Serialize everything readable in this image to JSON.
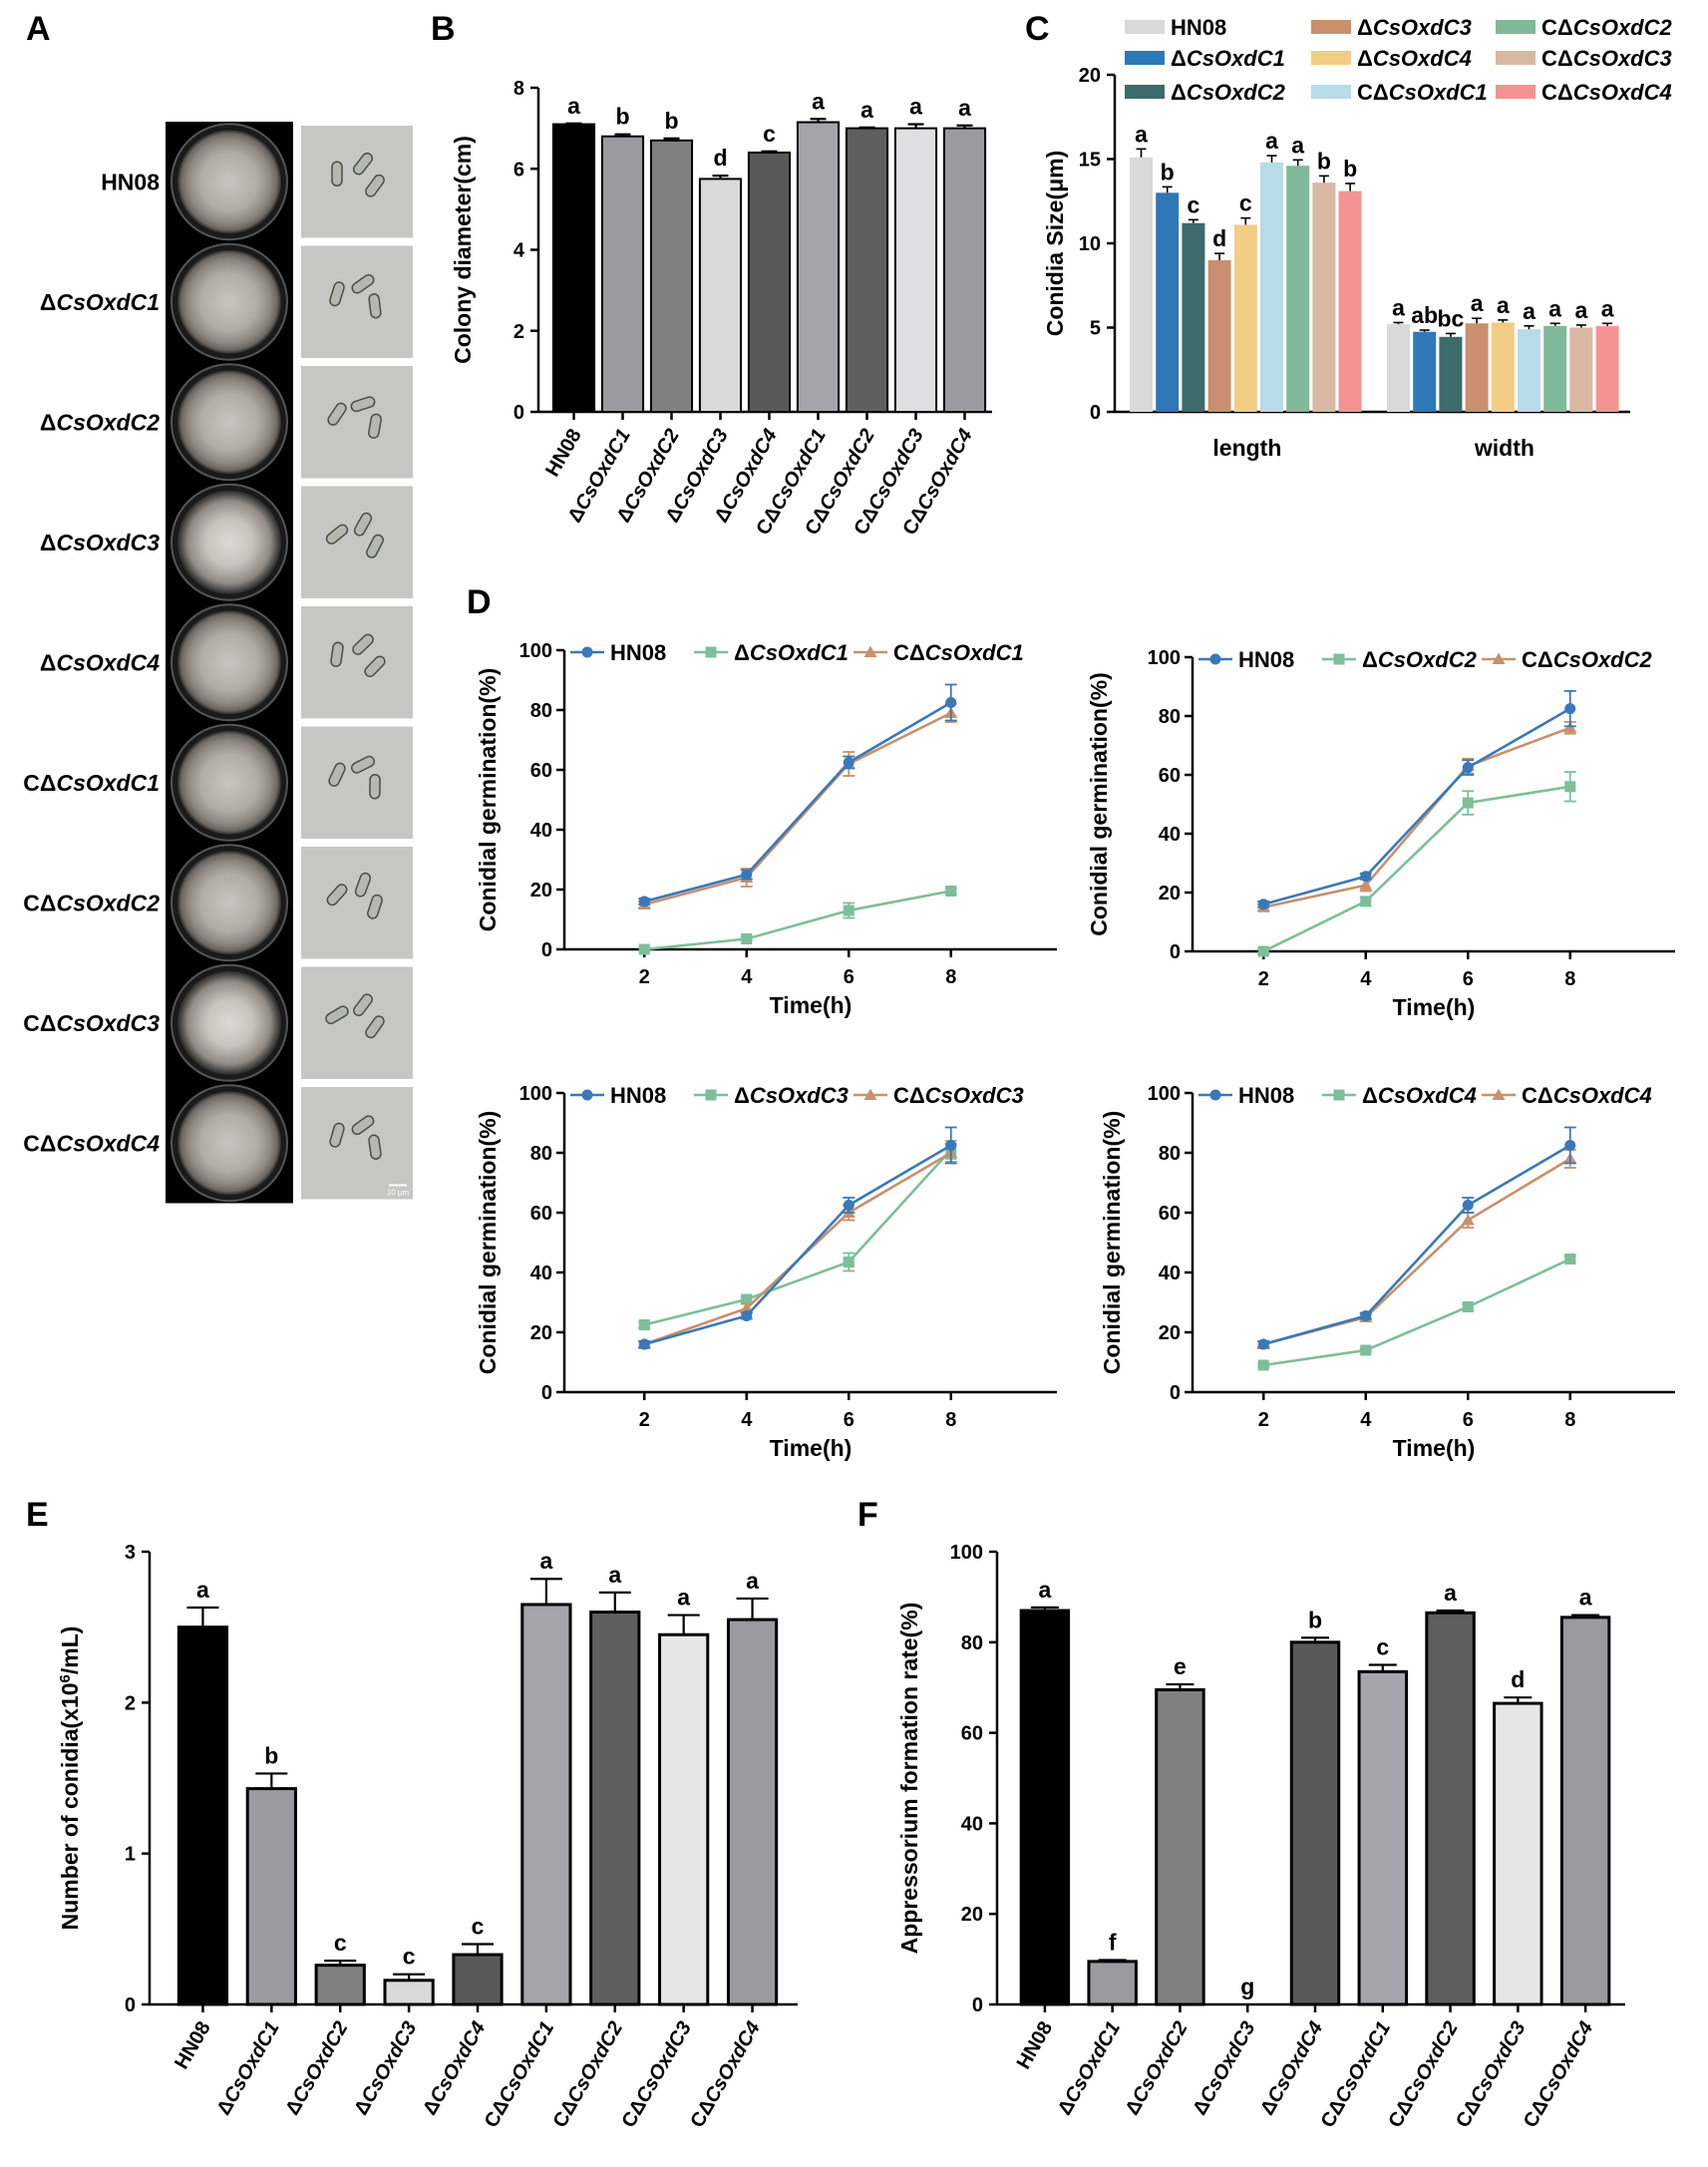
{
  "panel_letters": {
    "A": "A",
    "B": "B",
    "C": "C",
    "D": "D",
    "E": "E",
    "F": "F"
  },
  "colors": {
    "hn08_line": "#3a78b8",
    "mut_line": "#7cbf9a",
    "comp_line": "#c9906c",
    "c_series": [
      "#d9d9d9",
      "#2e78b8",
      "#3d6b6b",
      "#c98f6e",
      "#f2cd84",
      "#b7dbe8",
      "#7fb999",
      "#d8b7a3",
      "#f59393"
    ],
    "B_bars": [
      "#000000",
      "#9a9a9f",
      "#808080",
      "#d9d9d9",
      "#595959",
      "#a4a4aa",
      "#5f5f5f",
      "#dedee0",
      "#9a9a9f"
    ],
    "E_bars": [
      "#000000",
      "#9a9a9f",
      "#808080",
      "#d9d9d9",
      "#595959",
      "#a4a4aa",
      "#5f5f5f",
      "#e6e6e6",
      "#9a9a9f"
    ],
    "F_bars": [
      "#000000",
      "#9a9a9f",
      "#808080",
      "#d9d9d9",
      "#595959",
      "#a4a4aa",
      "#5f5f5f",
      "#e6e6e6",
      "#9a9a9f"
    ]
  },
  "panelA": {
    "rows": [
      {
        "pre": "",
        "it": "",
        "post": "HN08"
      },
      {
        "pre": "Δ",
        "it": "CsOxdC1",
        "post": ""
      },
      {
        "pre": "Δ",
        "it": "CsOxdC2",
        "post": ""
      },
      {
        "pre": "Δ",
        "it": "CsOxdC3",
        "post": ""
      },
      {
        "pre": "Δ",
        "it": "CsOxdC4",
        "post": ""
      },
      {
        "pre": "CΔ",
        "it": "CsOxdC1",
        "post": ""
      },
      {
        "pre": "CΔ",
        "it": "CsOxdC2",
        "post": ""
      },
      {
        "pre": "CΔ",
        "it": "CsOxdC3",
        "post": ""
      },
      {
        "pre": "CΔ",
        "it": "CsOxdC4",
        "post": ""
      }
    ],
    "scale_bar": "10 μm"
  },
  "strain_labels": [
    {
      "pre": "",
      "it": "",
      "post": "HN08"
    },
    {
      "pre": "Δ",
      "it": "CsOxdC1",
      "post": ""
    },
    {
      "pre": "Δ",
      "it": "CsOxdC2",
      "post": ""
    },
    {
      "pre": "Δ",
      "it": "CsOxdC3",
      "post": ""
    },
    {
      "pre": "Δ",
      "it": "CsOxdC4",
      "post": ""
    },
    {
      "pre": "CΔ",
      "it": "CsOxdC1",
      "post": ""
    },
    {
      "pre": "CΔ",
      "it": "CsOxdC2",
      "post": ""
    },
    {
      "pre": "CΔ",
      "it": "CsOxdC3",
      "post": ""
    },
    {
      "pre": "CΔ",
      "it": "CsOxdC4",
      "post": ""
    }
  ],
  "chart_data": [
    {
      "id": "B",
      "type": "bar",
      "title": "",
      "xlabel": "",
      "ylabel": "Colony diameter(cm)",
      "ylim": [
        0,
        8
      ],
      "yticks": [
        0,
        2,
        4,
        6,
        8
      ],
      "categories": [
        "HN08",
        "ΔCsOxdC1",
        "ΔCsOxdC2",
        "ΔCsOxdC3",
        "ΔCsOxdC4",
        "CΔCsOxdC1",
        "CΔCsOxdC2",
        "CΔCsOxdC3",
        "CΔCsOxdC4"
      ],
      "values": [
        7.1,
        6.8,
        6.7,
        5.75,
        6.4,
        7.15,
        7.0,
        7.0,
        7.0
      ],
      "errors": [
        0.02,
        0.05,
        0.05,
        0.08,
        0.03,
        0.08,
        0.02,
        0.1,
        0.07
      ],
      "letters": [
        "a",
        "b",
        "b",
        "d",
        "c",
        "a",
        "a",
        "a",
        "a"
      ]
    },
    {
      "id": "C",
      "type": "bar",
      "title": "",
      "xlabel": "",
      "ylabel": "Conidia Size(μm)",
      "ylim": [
        0,
        20
      ],
      "yticks": [
        0,
        5,
        10,
        15,
        20
      ],
      "categories": [
        "length",
        "width"
      ],
      "series": [
        {
          "name": "HN08",
          "pre": "",
          "it": "",
          "post": "HN08",
          "values": [
            15.1,
            5.2
          ],
          "errors": [
            0.5,
            0.1
          ],
          "letters": [
            "a",
            "a"
          ]
        },
        {
          "name": "ΔCsOxdC1",
          "pre": "Δ",
          "it": "CsOxdC1",
          "post": "",
          "values": [
            13.0,
            4.75
          ],
          "errors": [
            0.35,
            0.1
          ],
          "letters": [
            "b",
            "ab"
          ]
        },
        {
          "name": "ΔCsOxdC2",
          "pre": "Δ",
          "it": "CsOxdC2",
          "post": "",
          "values": [
            11.2,
            4.45
          ],
          "errors": [
            0.2,
            0.2
          ],
          "letters": [
            "c",
            "bc"
          ]
        },
        {
          "name": "ΔCsOxdC3",
          "pre": "Δ",
          "it": "CsOxdC3",
          "post": "",
          "values": [
            9.0,
            5.25
          ],
          "errors": [
            0.4,
            0.3
          ],
          "letters": [
            "d",
            "a"
          ]
        },
        {
          "name": "ΔCsOxdC4",
          "pre": "Δ",
          "it": "CsOxdC4",
          "post": "",
          "values": [
            11.1,
            5.3
          ],
          "errors": [
            0.4,
            0.15
          ],
          "letters": [
            "c",
            "a"
          ]
        },
        {
          "name": "CΔCsOxdC1",
          "pre": "CΔ",
          "it": "CsOxdC1",
          "post": "",
          "values": [
            14.8,
            4.9
          ],
          "errors": [
            0.4,
            0.2
          ],
          "letters": [
            "a",
            "a"
          ]
        },
        {
          "name": "CΔCsOxdC2",
          "pre": "CΔ",
          "it": "CsOxdC2",
          "post": "",
          "values": [
            14.6,
            5.1
          ],
          "errors": [
            0.35,
            0.15
          ],
          "letters": [
            "a",
            "a"
          ]
        },
        {
          "name": "CΔCsOxdC3",
          "pre": "CΔ",
          "it": "CsOxdC3",
          "post": "",
          "values": [
            13.6,
            5.0
          ],
          "errors": [
            0.4,
            0.15
          ],
          "letters": [
            "b",
            "a"
          ]
        },
        {
          "name": "CΔCsOxdC4",
          "pre": "CΔ",
          "it": "CsOxdC4",
          "post": "",
          "values": [
            13.1,
            5.1
          ],
          "errors": [
            0.45,
            0.15
          ],
          "letters": [
            "b",
            "a"
          ]
        }
      ]
    },
    {
      "id": "D1",
      "type": "line",
      "xlabel": "Time(h)",
      "ylabel": "Conidial germination(%)",
      "ylim": [
        0,
        100
      ],
      "yticks": [
        0,
        20,
        40,
        60,
        80,
        100
      ],
      "x": [
        2,
        4,
        6,
        8
      ],
      "series": [
        {
          "name": "HN08",
          "pre": "",
          "it": "",
          "post": "HN08",
          "marker": "circle",
          "values": [
            16,
            25,
            62.5,
            82.5
          ],
          "errors": [
            1,
            1.5,
            2,
            6
          ]
        },
        {
          "name": "ΔCsOxdC1",
          "pre": "Δ",
          "it": "CsOxdC1",
          "post": "",
          "marker": "square",
          "values": [
            0,
            3.5,
            13,
            19.5
          ],
          "errors": [
            0.5,
            0.5,
            2.5,
            1
          ]
        },
        {
          "name": "CΔCsOxdC1",
          "pre": "CΔ",
          "it": "CsOxdC1",
          "post": "",
          "marker": "triangle",
          "values": [
            15,
            24,
            62,
            79
          ],
          "errors": [
            1,
            3,
            4,
            3
          ]
        }
      ]
    },
    {
      "id": "D2",
      "type": "line",
      "xlabel": "Time(h)",
      "ylabel": "Conidial germination(%)",
      "ylim": [
        0,
        100
      ],
      "yticks": [
        0,
        20,
        40,
        60,
        80,
        100
      ],
      "x": [
        2,
        4,
        6,
        8
      ],
      "series": [
        {
          "name": "HN08",
          "pre": "",
          "it": "",
          "post": "HN08",
          "marker": "circle",
          "values": [
            16,
            25.5,
            62.5,
            82.5
          ],
          "errors": [
            1,
            1,
            2.5,
            6
          ]
        },
        {
          "name": "ΔCsOxdC2",
          "pre": "Δ",
          "it": "CsOxdC2",
          "post": "",
          "marker": "square",
          "values": [
            0,
            17,
            50.5,
            56
          ],
          "errors": [
            1,
            1.5,
            4,
            5
          ]
        },
        {
          "name": "CΔCsOxdC2",
          "pre": "CΔ",
          "it": "CsOxdC2",
          "post": "",
          "marker": "triangle",
          "values": [
            15,
            22.5,
            63,
            76
          ],
          "errors": [
            1,
            2,
            2.5,
            2
          ]
        }
      ]
    },
    {
      "id": "D3",
      "type": "line",
      "xlabel": "Time(h)",
      "ylabel": "Conidial germination(%)",
      "ylim": [
        0,
        100
      ],
      "yticks": [
        0,
        20,
        40,
        60,
        80,
        100
      ],
      "x": [
        2,
        4,
        6,
        8
      ],
      "series": [
        {
          "name": "HN08",
          "pre": "",
          "it": "",
          "post": "HN08",
          "marker": "circle",
          "values": [
            16,
            25.5,
            62.5,
            82.5
          ],
          "errors": [
            1,
            1,
            2.5,
            6
          ]
        },
        {
          "name": "ΔCsOxdC3",
          "pre": "Δ",
          "it": "CsOxdC3",
          "post": "",
          "marker": "square",
          "values": [
            22.5,
            31,
            43.5,
            81
          ],
          "errors": [
            1,
            1,
            3,
            3
          ]
        },
        {
          "name": "CΔCsOxdC3",
          "pre": "CΔ",
          "it": "CsOxdC3",
          "post": "",
          "marker": "triangle",
          "values": [
            16,
            28,
            60,
            80
          ],
          "errors": [
            1,
            1.5,
            2.5,
            3
          ]
        }
      ]
    },
    {
      "id": "D4",
      "type": "line",
      "xlabel": "Time(h)",
      "ylabel": "Conidial germination(%)",
      "ylim": [
        0,
        100
      ],
      "yticks": [
        0,
        20,
        40,
        60,
        80,
        100
      ],
      "x": [
        2,
        4,
        6,
        8
      ],
      "series": [
        {
          "name": "HN08",
          "pre": "",
          "it": "",
          "post": "HN08",
          "marker": "circle",
          "values": [
            16,
            25.5,
            62.5,
            82.5
          ],
          "errors": [
            1,
            1,
            2.5,
            6
          ]
        },
        {
          "name": "ΔCsOxdC4",
          "pre": "Δ",
          "it": "CsOxdC4",
          "post": "",
          "marker": "square",
          "values": [
            9,
            14,
            28.5,
            44.5
          ],
          "errors": [
            0.5,
            0.5,
            1,
            1
          ]
        },
        {
          "name": "CΔCsOxdC4",
          "pre": "CΔ",
          "it": "CsOxdC4",
          "post": "",
          "marker": "triangle",
          "values": [
            16,
            25,
            57.5,
            78
          ],
          "errors": [
            1,
            1,
            2.5,
            3
          ]
        }
      ]
    },
    {
      "id": "E",
      "type": "bar",
      "title": "",
      "xlabel": "",
      "ylabel_pre": "Number of conidia(x10",
      "ylabel_sup": "6",
      "ylabel_post": "/mL)",
      "ylim": [
        0,
        3
      ],
      "yticks": [
        0,
        1,
        2,
        3
      ],
      "categories": [
        "HN08",
        "ΔCsOxdC1",
        "ΔCsOxdC2",
        "ΔCsOxdC3",
        "ΔCsOxdC4",
        "CΔCsOxdC1",
        "CΔCsOxdC2",
        "CΔCsOxdC3",
        "CΔCsOxdC4"
      ],
      "values": [
        2.5,
        1.43,
        0.26,
        0.16,
        0.33,
        2.65,
        2.6,
        2.45,
        2.55
      ],
      "errors": [
        0.13,
        0.1,
        0.03,
        0.04,
        0.07,
        0.17,
        0.13,
        0.13,
        0.14
      ],
      "letters": [
        "a",
        "b",
        "c",
        "c",
        "c",
        "a",
        "a",
        "a",
        "a"
      ]
    },
    {
      "id": "F",
      "type": "bar",
      "title": "",
      "xlabel": "",
      "ylabel": "Appressorium formation rate(%)",
      "ylim": [
        0,
        100
      ],
      "yticks": [
        0,
        20,
        40,
        60,
        80,
        100
      ],
      "categories": [
        "HN08",
        "ΔCsOxdC1",
        "ΔCsOxdC2",
        "ΔCsOxdC3",
        "ΔCsOxdC4",
        "CΔCsOxdC1",
        "CΔCsOxdC2",
        "CΔCsOxdC3",
        "CΔCsOxdC4"
      ],
      "values": [
        87,
        9.5,
        69.5,
        0,
        80,
        73.5,
        86.5,
        66.5,
        85.5
      ],
      "errors": [
        0.7,
        0.3,
        1.2,
        0,
        1,
        1.5,
        0.5,
        1.3,
        0.5
      ],
      "letters": [
        "a",
        "f",
        "e",
        "g",
        "b",
        "c",
        "a",
        "d",
        "a"
      ]
    }
  ]
}
